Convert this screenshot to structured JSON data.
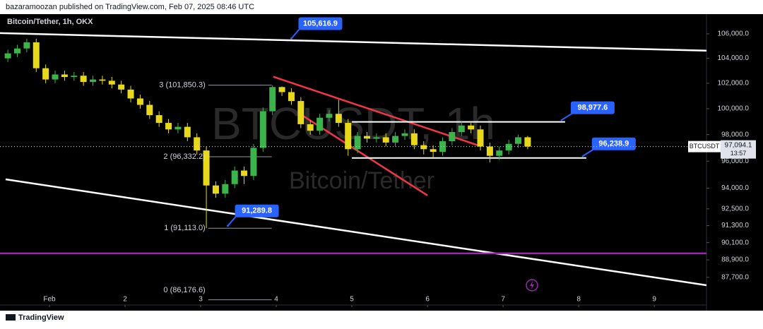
{
  "header": "bazaramoozan published on TradingView.com, Feb 07, 2025 08:46 UTC",
  "footer": "TradingView",
  "chart_data": {
    "type": "candlestick",
    "symbol": "Bitcoin/Tether, 1h, OKX",
    "watermark": "BTCUSDT, 1h",
    "watermark_name": "Bitcoin/Tether",
    "log": true,
    "up_color": "#3cb44b",
    "down_color": "#e8d81c",
    "xlim": [
      0.346,
      9.69
    ],
    "ylim": [
      85830,
      107640
    ],
    "xticks": [
      {
        "value": 1,
        "label": "Feb"
      },
      2,
      3,
      4,
      5,
      6,
      7,
      8,
      9
    ],
    "yticks": [
      {
        "value": 106000,
        "label": "106,000.0"
      },
      {
        "value": 104000,
        "label": "104,000.0"
      },
      {
        "value": 102000,
        "label": "102,000.0"
      },
      {
        "value": 100000,
        "label": "100,000.0"
      },
      {
        "value": 98000,
        "label": "98,000.0"
      },
      {
        "value": 96000,
        "label": "96,000.0"
      },
      {
        "value": 94000,
        "label": "94,000.0"
      },
      {
        "value": 92500,
        "label": "92,500.0"
      },
      {
        "value": 91300,
        "label": "91,300.0"
      },
      {
        "value": 90100,
        "label": "90,100.0"
      },
      {
        "value": 88900,
        "label": "88,900.0"
      },
      {
        "value": 87700,
        "label": "87,700.0"
      }
    ],
    "x": [
      0.45,
      0.575,
      0.7,
      0.825,
      0.95,
      1.075,
      1.2,
      1.325,
      1.45,
      1.575,
      1.7,
      1.825,
      1.95,
      2.075,
      2.2,
      2.325,
      2.45,
      2.575,
      2.7,
      2.825,
      2.95,
      3.075,
      3.2,
      3.325,
      3.45,
      3.575,
      3.7,
      3.825,
      3.95,
      4.075,
      4.2,
      4.325,
      4.45,
      4.575,
      4.7,
      4.825,
      4.95,
      5.075,
      5.2,
      5.325,
      5.45,
      5.575,
      5.7,
      5.825,
      5.95,
      6.075,
      6.2,
      6.325,
      6.45,
      6.575,
      6.7,
      6.825,
      6.95,
      7.075,
      7.2,
      7.325
    ],
    "open": [
      104000,
      104400,
      104800,
      105300,
      103200,
      102300,
      102700,
      102500,
      102600,
      102100,
      102300,
      102200,
      101900,
      101500,
      100800,
      100300,
      99500,
      98900,
      98400,
      98600,
      97800,
      96800,
      94200,
      93600,
      94300,
      95300,
      94900,
      97000,
      99800,
      101700,
      101300,
      100600,
      98800,
      98300,
      99300,
      99600,
      98900,
      96900,
      97900,
      97700,
      97800,
      97400,
      97900,
      98100,
      97200,
      96900,
      96700,
      97500,
      98200,
      98700,
      98400,
      97100,
      96400,
      96800,
      97300,
      97800
    ],
    "high": [
      104700,
      105100,
      105600,
      105600,
      103500,
      103000,
      103000,
      102900,
      102900,
      102600,
      102600,
      102500,
      102200,
      101800,
      101100,
      100600,
      99800,
      99200,
      98900,
      98900,
      98100,
      97100,
      94500,
      94600,
      95600,
      95600,
      97300,
      100100,
      101850,
      101750,
      101600,
      100900,
      99100,
      99600,
      99900,
      100700,
      99200,
      98200,
      98200,
      98100,
      98100,
      98200,
      98400,
      98400,
      97500,
      97200,
      97800,
      98500,
      99000,
      98900,
      98700,
      97400,
      97100,
      97600,
      98000,
      97900
    ],
    "low": [
      103700,
      104100,
      104500,
      102900,
      102000,
      102000,
      102200,
      102200,
      101800,
      101800,
      101900,
      101600,
      101200,
      100500,
      100000,
      99200,
      98600,
      98100,
      98100,
      97500,
      96500,
      91113,
      93300,
      93300,
      94000,
      94300,
      94600,
      96700,
      99500,
      101000,
      100300,
      98500,
      98000,
      98000,
      99000,
      98600,
      96400,
      96600,
      97400,
      97400,
      97100,
      97100,
      97600,
      96900,
      96500,
      96300,
      96400,
      97200,
      97900,
      98100,
      96800,
      95900,
      96100,
      96500,
      97000,
      96900
    ],
    "close": [
      104400,
      104800,
      105300,
      103200,
      102300,
      102700,
      102500,
      102600,
      102100,
      102300,
      102200,
      101900,
      101500,
      100800,
      100300,
      99500,
      98900,
      98400,
      98600,
      97800,
      96800,
      94200,
      93600,
      94300,
      95300,
      94900,
      97000,
      99800,
      101700,
      101300,
      100600,
      98800,
      98300,
      99300,
      99600,
      98900,
      96900,
      97900,
      97700,
      97800,
      97400,
      97900,
      98100,
      97200,
      96900,
      96700,
      97500,
      98200,
      98700,
      98400,
      97100,
      96400,
      96800,
      97300,
      97800,
      97094.1
    ],
    "last_price": {
      "value": 97094.1,
      "label": "97,094.1"
    },
    "symbol_tag": "BTCUSDT",
    "countdown": "13:57",
    "trendlines": [
      {
        "color": "#ffffff",
        "x": [
          0.346,
          9.83
        ],
        "y": [
          106060,
          104600
        ]
      },
      {
        "color": "#ffffff",
        "x": [
          0.42,
          9.69
        ],
        "y": [
          94650,
          87160
        ]
      },
      {
        "color": "#f23645",
        "x": [
          3.96,
          6.7
        ],
        "y": [
          102520,
          97130
        ]
      },
      {
        "color": "#f23645",
        "x": [
          4.36,
          6.0
        ],
        "y": [
          99420,
          93470
        ]
      },
      {
        "color": "#9c27b0",
        "x": [
          0.346,
          9.69
        ],
        "y": [
          89350,
          89350
        ]
      }
    ],
    "price_levels": [
      {
        "value": 98977.6,
        "label": "98,977.6",
        "x": [
          5.0,
          7.82
        ]
      },
      {
        "value": 96238.9,
        "label": "96,238.9",
        "x": [
          5.0,
          8.1
        ]
      }
    ],
    "callouts": [
      {
        "value": 105616.9,
        "label": "105,616.9",
        "x": 4.2
      },
      {
        "value": 91289.8,
        "label": "91,289.8",
        "x": 3.36
      }
    ],
    "fib": {
      "x": [
        3.1,
        3.94
      ],
      "levels": [
        {
          "value": 101850.3,
          "label": "3 (101,850.3)"
        },
        {
          "value": 96332.2,
          "label": "2 (96,332.2)"
        },
        {
          "value": 91113.0,
          "label": "1 (91,113.0)"
        },
        {
          "value": 86176.6,
          "label": "0 (86,176.6)"
        }
      ]
    }
  }
}
